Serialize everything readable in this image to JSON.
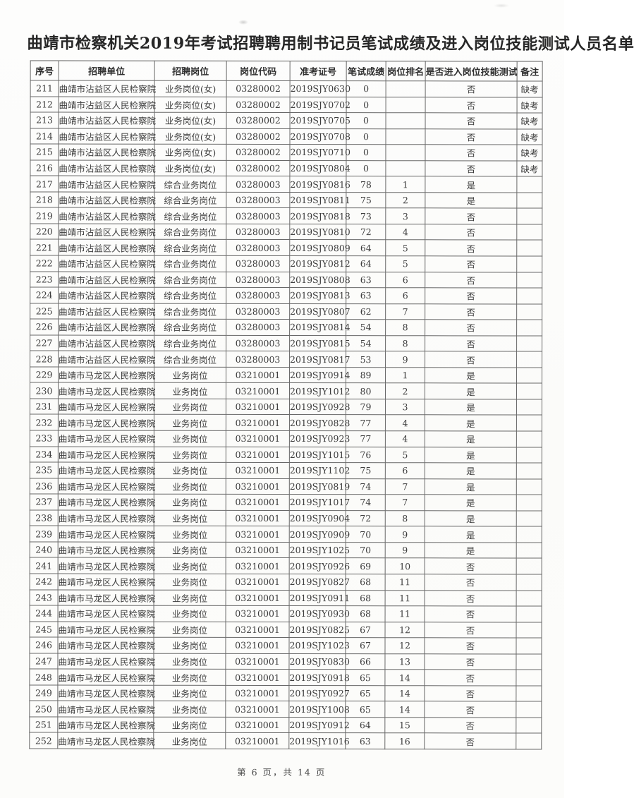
{
  "page": {
    "title": "曲靖市检察机关2019年考试招聘聘用制书记员笔试成绩及进入岗位技能测试人员名单",
    "footer": "第 6 页，共 14 页"
  },
  "table": {
    "headers": [
      "序号",
      "招聘单位",
      "招聘岗位",
      "岗位代码",
      "准考证号",
      "笔试成绩",
      "岗位排名",
      "是否进入岗位技能测试",
      "备注"
    ],
    "rows": [
      [
        "211",
        "曲靖市沾益区人民检察院",
        "业务岗位(女)",
        "03280002",
        "2019SJY0630",
        "0",
        "",
        "否",
        "缺考"
      ],
      [
        "212",
        "曲靖市沾益区人民检察院",
        "业务岗位(女)",
        "03280002",
        "2019SJY0702",
        "0",
        "",
        "否",
        "缺考"
      ],
      [
        "213",
        "曲靖市沾益区人民检察院",
        "业务岗位(女)",
        "03280002",
        "2019SJY0705",
        "0",
        "",
        "否",
        "缺考"
      ],
      [
        "214",
        "曲靖市沾益区人民检察院",
        "业务岗位(女)",
        "03280002",
        "2019SJY0708",
        "0",
        "",
        "否",
        "缺考"
      ],
      [
        "215",
        "曲靖市沾益区人民检察院",
        "业务岗位(女)",
        "03280002",
        "2019SJY0710",
        "0",
        "",
        "否",
        "缺考"
      ],
      [
        "216",
        "曲靖市沾益区人民检察院",
        "业务岗位(女)",
        "03280002",
        "2019SJY0804",
        "0",
        "",
        "否",
        "缺考"
      ],
      [
        "217",
        "曲靖市沾益区人民检察院",
        "综合业务岗位",
        "03280003",
        "2019SJY0816",
        "78",
        "1",
        "是",
        ""
      ],
      [
        "218",
        "曲靖市沾益区人民检察院",
        "综合业务岗位",
        "03280003",
        "2019SJY0811",
        "75",
        "2",
        "是",
        ""
      ],
      [
        "219",
        "曲靖市沾益区人民检察院",
        "综合业务岗位",
        "03280003",
        "2019SJY0818",
        "73",
        "3",
        "否",
        ""
      ],
      [
        "220",
        "曲靖市沾益区人民检察院",
        "综合业务岗位",
        "03280003",
        "2019SJY0810",
        "72",
        "4",
        "否",
        ""
      ],
      [
        "221",
        "曲靖市沾益区人民检察院",
        "综合业务岗位",
        "03280003",
        "2019SJY0809",
        "64",
        "5",
        "否",
        ""
      ],
      [
        "222",
        "曲靖市沾益区人民检察院",
        "综合业务岗位",
        "03280003",
        "2019SJY0812",
        "64",
        "5",
        "否",
        ""
      ],
      [
        "223",
        "曲靖市沾益区人民检察院",
        "综合业务岗位",
        "03280003",
        "2019SJY0808",
        "63",
        "6",
        "否",
        ""
      ],
      [
        "224",
        "曲靖市沾益区人民检察院",
        "综合业务岗位",
        "03280003",
        "2019SJY0813",
        "63",
        "6",
        "否",
        ""
      ],
      [
        "225",
        "曲靖市沾益区人民检察院",
        "综合业务岗位",
        "03280003",
        "2019SJY0807",
        "62",
        "7",
        "否",
        ""
      ],
      [
        "226",
        "曲靖市沾益区人民检察院",
        "综合业务岗位",
        "03280003",
        "2019SJY0814",
        "54",
        "8",
        "否",
        ""
      ],
      [
        "227",
        "曲靖市沾益区人民检察院",
        "综合业务岗位",
        "03280003",
        "2019SJY0815",
        "54",
        "8",
        "否",
        ""
      ],
      [
        "228",
        "曲靖市沾益区人民检察院",
        "综合业务岗位",
        "03280003",
        "2019SJY0817",
        "53",
        "9",
        "否",
        ""
      ],
      [
        "229",
        "曲靖市马龙区人民检察院",
        "业务岗位",
        "03210001",
        "2019SJY0914",
        "89",
        "1",
        "是",
        ""
      ],
      [
        "230",
        "曲靖市马龙区人民检察院",
        "业务岗位",
        "03210001",
        "2019SJY1012",
        "80",
        "2",
        "是",
        ""
      ],
      [
        "231",
        "曲靖市马龙区人民检察院",
        "业务岗位",
        "03210001",
        "2019SJY0928",
        "79",
        "3",
        "是",
        ""
      ],
      [
        "232",
        "曲靖市马龙区人民检察院",
        "业务岗位",
        "03210001",
        "2019SJY0828",
        "77",
        "4",
        "是",
        ""
      ],
      [
        "233",
        "曲靖市马龙区人民检察院",
        "业务岗位",
        "03210001",
        "2019SJY0923",
        "77",
        "4",
        "是",
        ""
      ],
      [
        "234",
        "曲靖市马龙区人民检察院",
        "业务岗位",
        "03210001",
        "2019SJY1015",
        "76",
        "5",
        "是",
        ""
      ],
      [
        "235",
        "曲靖市马龙区人民检察院",
        "业务岗位",
        "03210001",
        "2019SJY1102",
        "75",
        "6",
        "是",
        ""
      ],
      [
        "236",
        "曲靖市马龙区人民检察院",
        "业务岗位",
        "03210001",
        "2019SJY0819",
        "74",
        "7",
        "是",
        ""
      ],
      [
        "237",
        "曲靖市马龙区人民检察院",
        "业务岗位",
        "03210001",
        "2019SJY1017",
        "74",
        "7",
        "是",
        ""
      ],
      [
        "238",
        "曲靖市马龙区人民检察院",
        "业务岗位",
        "03210001",
        "2019SJY0904",
        "72",
        "8",
        "是",
        ""
      ],
      [
        "239",
        "曲靖市马龙区人民检察院",
        "业务岗位",
        "03210001",
        "2019SJY0909",
        "70",
        "9",
        "是",
        ""
      ],
      [
        "240",
        "曲靖市马龙区人民检察院",
        "业务岗位",
        "03210001",
        "2019SJY1025",
        "70",
        "9",
        "是",
        ""
      ],
      [
        "241",
        "曲靖市马龙区人民检察院",
        "业务岗位",
        "03210001",
        "2019SJY0926",
        "69",
        "10",
        "否",
        ""
      ],
      [
        "242",
        "曲靖市马龙区人民检察院",
        "业务岗位",
        "03210001",
        "2019SJY0827",
        "68",
        "11",
        "否",
        ""
      ],
      [
        "243",
        "曲靖市马龙区人民检察院",
        "业务岗位",
        "03210001",
        "2019SJY0911",
        "68",
        "11",
        "否",
        ""
      ],
      [
        "244",
        "曲靖市马龙区人民检察院",
        "业务岗位",
        "03210001",
        "2019SJY0930",
        "68",
        "11",
        "否",
        ""
      ],
      [
        "245",
        "曲靖市马龙区人民检察院",
        "业务岗位",
        "03210001",
        "2019SJY0825",
        "67",
        "12",
        "否",
        ""
      ],
      [
        "246",
        "曲靖市马龙区人民检察院",
        "业务岗位",
        "03210001",
        "2019SJY1023",
        "67",
        "12",
        "否",
        ""
      ],
      [
        "247",
        "曲靖市马龙区人民检察院",
        "业务岗位",
        "03210001",
        "2019SJY0830",
        "66",
        "13",
        "否",
        ""
      ],
      [
        "248",
        "曲靖市马龙区人民检察院",
        "业务岗位",
        "03210001",
        "2019SJY0918",
        "65",
        "14",
        "否",
        ""
      ],
      [
        "249",
        "曲靖市马龙区人民检察院",
        "业务岗位",
        "03210001",
        "2019SJY0927",
        "65",
        "14",
        "否",
        ""
      ],
      [
        "250",
        "曲靖市马龙区人民检察院",
        "业务岗位",
        "03210001",
        "2019SJY1008",
        "65",
        "14",
        "否",
        ""
      ],
      [
        "251",
        "曲靖市马龙区人民检察院",
        "业务岗位",
        "03210001",
        "2019SJY0912",
        "64",
        "15",
        "否",
        ""
      ],
      [
        "252",
        "曲靖市马龙区人民检察院",
        "业务岗位",
        "03210001",
        "2019SJY1016",
        "63",
        "16",
        "否",
        ""
      ]
    ]
  }
}
